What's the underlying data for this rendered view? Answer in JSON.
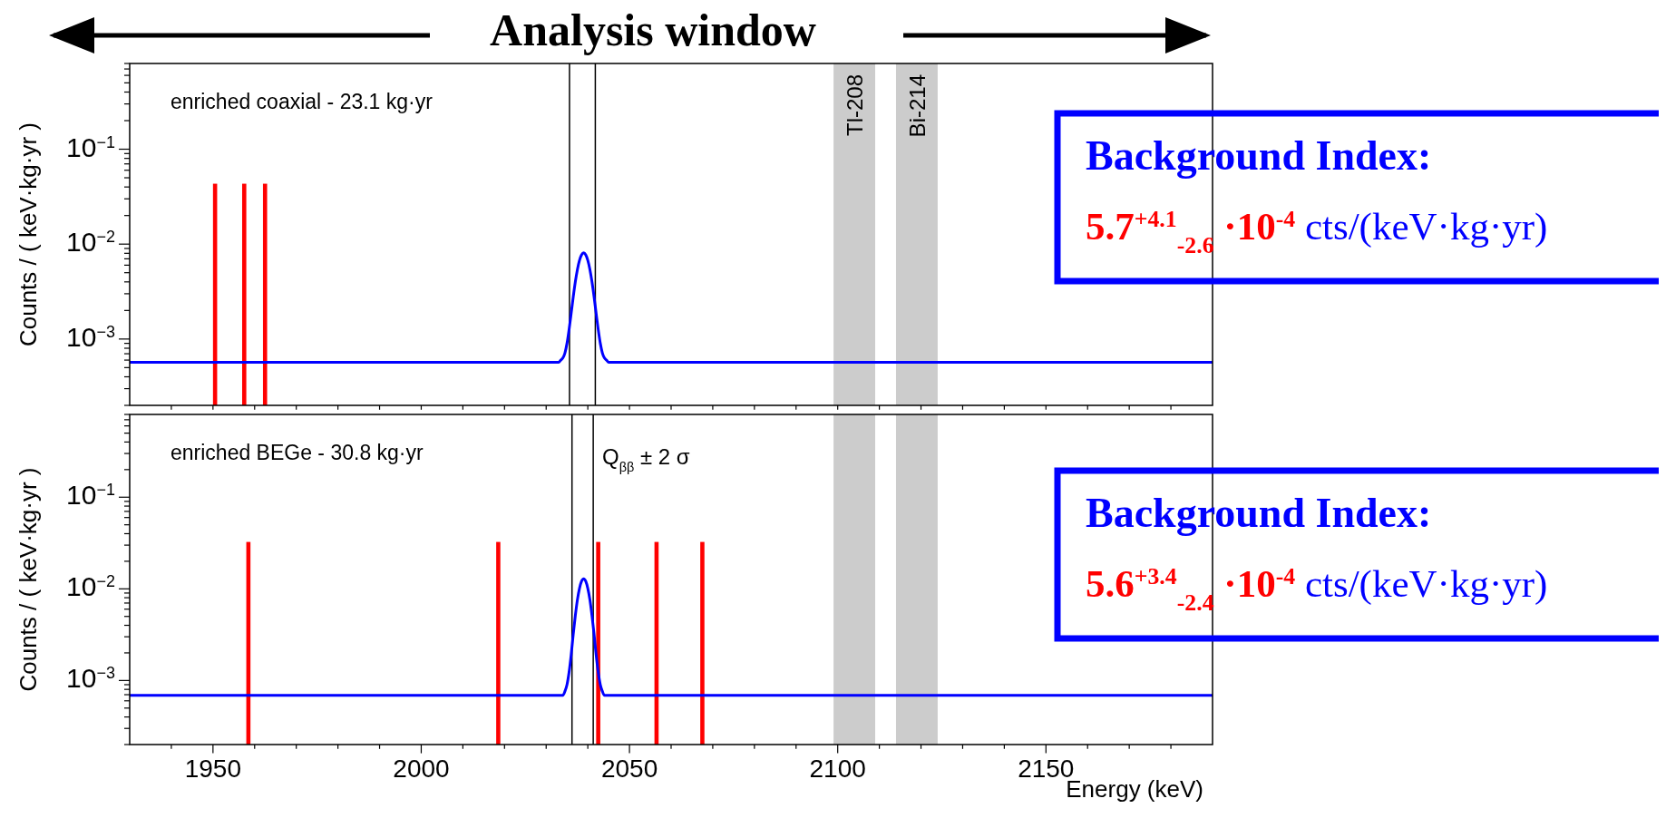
{
  "chart_data": [
    {
      "type": "bar",
      "title": "Analysis window",
      "ylabel": "Counts / ( keV·kg·yr )",
      "log": "y",
      "tick_labels": "y",
      "xlim": [
        1930,
        2190
      ],
      "ylim": [
        0.0002,
        0.8
      ],
      "xticks": [
        {
          "value": 1940,
          "label": null
        },
        {
          "value": 1950,
          "label": null
        },
        {
          "value": 1960,
          "label": null
        },
        {
          "value": 1970,
          "label": null
        },
        {
          "value": 1980,
          "label": null
        },
        {
          "value": 1990,
          "label": null
        },
        {
          "value": 2000,
          "label": null
        },
        {
          "value": 2010,
          "label": null
        },
        {
          "value": 2020,
          "label": null
        },
        {
          "value": 2030,
          "label": null
        },
        {
          "value": 2040,
          "label": null
        },
        {
          "value": 2050,
          "label": null
        },
        {
          "value": 2060,
          "label": null
        },
        {
          "value": 2070,
          "label": null
        },
        {
          "value": 2080,
          "label": null
        },
        {
          "value": 2090,
          "label": null
        },
        {
          "value": 2100,
          "label": null
        },
        {
          "value": 2110,
          "label": null
        },
        {
          "value": 2120,
          "label": null
        },
        {
          "value": 2130,
          "label": null
        },
        {
          "value": 2140,
          "label": null
        },
        {
          "value": 2150,
          "label": null
        },
        {
          "value": 2160,
          "label": null
        },
        {
          "value": 2170,
          "label": null
        },
        {
          "value": 2180,
          "label": null
        }
      ],
      "yticks": [
        {
          "value": 0.0002,
          "label": null
        },
        {
          "value": 0.0003,
          "label": null
        },
        {
          "value": 0.0004,
          "label": null
        },
        {
          "value": 0.0005,
          "label": null
        },
        {
          "value": 0.0006,
          "label": null
        },
        {
          "value": 0.0007,
          "label": null
        },
        {
          "value": 0.0008,
          "label": null
        },
        {
          "value": 0.0009,
          "label": null
        },
        {
          "value": 0.001,
          "label": "10$^{−3}$"
        },
        {
          "value": 0.002,
          "label": null
        },
        {
          "value": 0.003,
          "label": null
        },
        {
          "value": 0.004,
          "label": null
        },
        {
          "value": 0.005,
          "label": null
        },
        {
          "value": 0.006,
          "label": null
        },
        {
          "value": 0.007,
          "label": null
        },
        {
          "value": 0.008,
          "label": null
        },
        {
          "value": 0.009,
          "label": null
        },
        {
          "value": 0.01,
          "label": "10$^{−2}$"
        },
        {
          "value": 0.02,
          "label": null
        },
        {
          "value": 0.03,
          "label": null
        },
        {
          "value": 0.04,
          "label": null
        },
        {
          "value": 0.05,
          "label": null
        },
        {
          "value": 0.06,
          "label": null
        },
        {
          "value": 0.07,
          "label": null
        },
        {
          "value": 0.08,
          "label": null
        },
        {
          "value": 0.09,
          "label": null
        },
        {
          "value": 0.1,
          "label": "10$^{−1}$"
        },
        {
          "value": 0.2,
          "label": null
        },
        {
          "value": 0.3,
          "label": null
        },
        {
          "value": 0.4,
          "label": null
        },
        {
          "value": 0.5,
          "label": null
        },
        {
          "value": 0.6,
          "label": null
        },
        {
          "value": 0.7,
          "label": null
        },
        {
          "value": 0.8,
          "label": null
        }
      ],
      "series": [
        {
          "color": "#ff0000",
          "x": [
            1950.5,
            1957.5,
            1962.5
          ],
          "values": [
            0.0433,
            0.0433,
            0.0433
          ]
        },
        {
          "type": "line",
          "color": "#0000ff",
          "x": [
            1930,
            2033,
            2033.5,
            2034,
            2034.5,
            2035,
            2035.5,
            2036,
            2036.5,
            2037,
            2037.5,
            2038,
            2038.5,
            2039,
            2039.5,
            2040,
            2040.5,
            2041,
            2041.5,
            2042,
            2042.5,
            2043,
            2043.5,
            2044,
            2044.5,
            2045,
            2190
          ],
          "values": [
            0.00057,
            0.00057,
            0.0006,
            0.00063,
            0.00071,
            0.0009,
            0.00126,
            0.00186,
            0.00278,
            0.004,
            0.0054,
            0.00674,
            0.0077,
            0.0081,
            0.0077,
            0.00674,
            0.0054,
            0.004,
            0.00278,
            0.00186,
            0.00126,
            0.0009,
            0.00071,
            0.00063,
            0.0006,
            0.00057,
            0.00057
          ]
        }
      ],
      "ref_lines": [
        {
          "axis": "x",
          "value": 2035.6,
          "color": "#000000"
        },
        {
          "axis": "x",
          "value": 2041.8,
          "color": "#000000"
        }
      ],
      "bands": [
        {
          "axis": "x",
          "from": 2099,
          "to": 2109,
          "label": "Tl-208",
          "color": "#cccccc"
        },
        {
          "axis": "x",
          "from": 2114,
          "to": 2124,
          "label": "Bi-214",
          "color": "#cccccc"
        }
      ],
      "annotations": [
        "enriched coaxial - 23.1 kg·yr",
        "Background Index:",
        "5.7$^{+4.1}$$_{-2.6}$ ·10$^{-4}$",
        "cts/(keV·kg·yr)"
      ]
    },
    {
      "type": "bar",
      "xlabel": "Energy (keV)",
      "ylabel": "Counts / ( keV·kg·yr )",
      "log": "y",
      "xlim": [
        1930,
        2190
      ],
      "ylim": [
        0.0002,
        0.8
      ],
      "xticks": [
        {
          "value": 1940,
          "label": null
        },
        {
          "value": 1950,
          "label": "1950"
        },
        {
          "value": 1960,
          "label": null
        },
        {
          "value": 1970,
          "label": null
        },
        {
          "value": 1980,
          "label": null
        },
        {
          "value": 1990,
          "label": null
        },
        {
          "value": 2000,
          "label": "2000"
        },
        {
          "value": 2010,
          "label": null
        },
        {
          "value": 2020,
          "label": null
        },
        {
          "value": 2030,
          "label": null
        },
        {
          "value": 2040,
          "label": null
        },
        {
          "value": 2050,
          "label": "2050"
        },
        {
          "value": 2060,
          "label": null
        },
        {
          "value": 2070,
          "label": null
        },
        {
          "value": 2080,
          "label": null
        },
        {
          "value": 2090,
          "label": null
        },
        {
          "value": 2100,
          "label": "2100"
        },
        {
          "value": 2110,
          "label": null
        },
        {
          "value": 2120,
          "label": null
        },
        {
          "value": 2130,
          "label": null
        },
        {
          "value": 2140,
          "label": null
        },
        {
          "value": 2150,
          "label": "2150"
        },
        {
          "value": 2160,
          "label": null
        },
        {
          "value": 2170,
          "label": null
        },
        {
          "value": 2180,
          "label": null
        }
      ],
      "yticks": [
        {
          "value": 0.0002,
          "label": null
        },
        {
          "value": 0.0003,
          "label": null
        },
        {
          "value": 0.0004,
          "label": null
        },
        {
          "value": 0.0005,
          "label": null
        },
        {
          "value": 0.0006,
          "label": null
        },
        {
          "value": 0.0007,
          "label": null
        },
        {
          "value": 0.0008,
          "label": null
        },
        {
          "value": 0.0009,
          "label": null
        },
        {
          "value": 0.001,
          "label": "10$^{−3}$"
        },
        {
          "value": 0.002,
          "label": null
        },
        {
          "value": 0.003,
          "label": null
        },
        {
          "value": 0.004,
          "label": null
        },
        {
          "value": 0.005,
          "label": null
        },
        {
          "value": 0.006,
          "label": null
        },
        {
          "value": 0.007,
          "label": null
        },
        {
          "value": 0.008,
          "label": null
        },
        {
          "value": 0.009,
          "label": null
        },
        {
          "value": 0.01,
          "label": "10$^{−2}$"
        },
        {
          "value": 0.02,
          "label": null
        },
        {
          "value": 0.03,
          "label": null
        },
        {
          "value": 0.04,
          "label": null
        },
        {
          "value": 0.05,
          "label": null
        },
        {
          "value": 0.06,
          "label": null
        },
        {
          "value": 0.07,
          "label": null
        },
        {
          "value": 0.08,
          "label": null
        },
        {
          "value": 0.09,
          "label": null
        },
        {
          "value": 0.1,
          "label": "10$^{−1}$"
        },
        {
          "value": 0.2,
          "label": null
        },
        {
          "value": 0.3,
          "label": null
        },
        {
          "value": 0.4,
          "label": null
        },
        {
          "value": 0.5,
          "label": null
        },
        {
          "value": 0.6,
          "label": null
        },
        {
          "value": 0.7,
          "label": null
        },
        {
          "value": 0.8,
          "label": null
        }
      ],
      "series": [
        {
          "color": "#ff0000",
          "x": [
            1958.5,
            2018.5,
            2042.5,
            2056.5,
            2067.5
          ],
          "values": [
            0.0325,
            0.0325,
            0.0325,
            0.0325,
            0.0325
          ]
        },
        {
          "type": "line",
          "color": "#0000ff",
          "x": [
            1930,
            2033,
            2033.5,
            2034,
            2034.5,
            2035,
            2035.5,
            2036,
            2036.5,
            2037,
            2037.5,
            2038,
            2038.5,
            2039,
            2039.5,
            2040,
            2040.5,
            2041,
            2041.5,
            2042,
            2042.5,
            2043,
            2043.5,
            2044,
            2044.5,
            2045,
            2190
          ],
          "values": [
            0.00069,
            0.00069,
            0.00069,
            0.00069,
            0.00076,
            0.0009,
            0.00123,
            0.0019,
            0.0032,
            0.0051,
            0.0076,
            0.0101,
            0.0121,
            0.0129,
            0.0121,
            0.0101,
            0.0076,
            0.0051,
            0.0032,
            0.0019,
            0.00123,
            0.0009,
            0.00076,
            0.00069,
            0.00069,
            0.00069,
            0.00069
          ]
        }
      ],
      "ref_lines": [
        {
          "axis": "x",
          "value": 2036.2,
          "color": "#000000"
        },
        {
          "axis": "x",
          "value": 2041.3,
          "color": "#000000"
        }
      ],
      "bands": [
        {
          "axis": "x",
          "from": 2099,
          "to": 2109,
          "color": "#cccccc"
        },
        {
          "axis": "x",
          "from": 2114,
          "to": 2124,
          "color": "#cccccc"
        }
      ],
      "annotations": [
        "enriched BEGe - 30.8 kg·yr",
        "Background Index:",
        "5.6$^{+3.4}$$_{-2.4}$ ·10$^{-4}$",
        "cts/(keV·kg·yr)",
        {
          "text": "Q$_{ββ}$ ± 2 σ",
          "x": 2041.3,
          "y": 0.3
        }
      ]
    }
  ]
}
